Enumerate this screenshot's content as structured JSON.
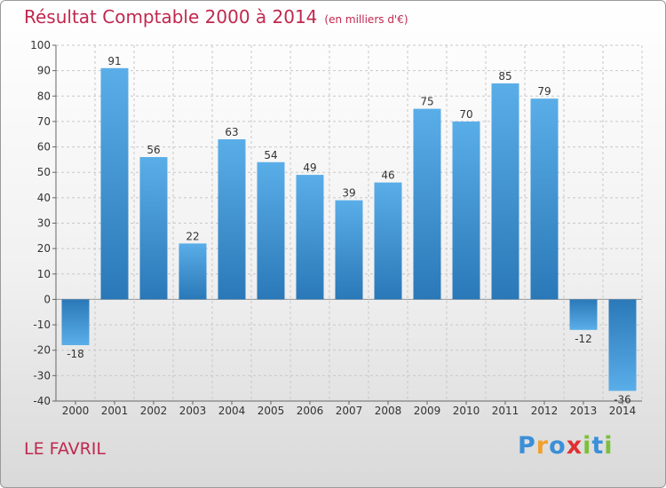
{
  "title": "Résultat Comptable 2000 à 2014",
  "subtitle": "(en milliers d'€)",
  "town": "LE FAVRIL",
  "logo": {
    "letters": [
      "P",
      "r",
      "o",
      "x",
      "i",
      "t",
      "i"
    ],
    "colors": [
      "#3a8fd8",
      "#f0a030",
      "#3a8fd8",
      "#e03030",
      "#7cbf3a",
      "#3a8fd8",
      "#7cbf3a"
    ]
  },
  "colors": {
    "bar_top": "#5aaee8",
    "bar_bottom": "#2a78b8",
    "grid": "#c8c8c8",
    "text": "#333333",
    "accent": "#c0284e"
  },
  "chart_data": {
    "type": "bar",
    "title": "Résultat Comptable 2000 à 2014",
    "xlabel": "",
    "ylabel": "",
    "categories": [
      "2000",
      "2001",
      "2002",
      "2003",
      "2004",
      "2005",
      "2006",
      "2007",
      "2008",
      "2009",
      "2010",
      "2011",
      "2012",
      "2013",
      "2014"
    ],
    "values": [
      -18,
      91,
      56,
      22,
      63,
      54,
      49,
      39,
      46,
      75,
      70,
      85,
      79,
      -12,
      -36
    ],
    "ylim": [
      -40,
      100
    ],
    "yticks": [
      -40,
      -30,
      -20,
      -10,
      0,
      10,
      20,
      30,
      40,
      50,
      60,
      70,
      80,
      90,
      100
    ],
    "grid": true
  }
}
